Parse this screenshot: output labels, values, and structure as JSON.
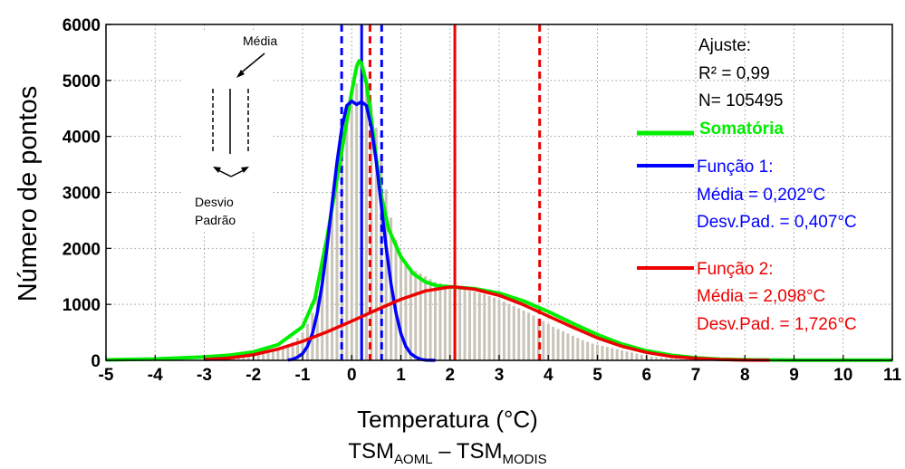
{
  "chart_data": {
    "type": "line",
    "ylabel": "Número de pontos",
    "xlabel": "Temperatura (°C)",
    "xlabel2": {
      "base1": "TSM",
      "sub1": "AOML",
      "dash": " – ",
      "base2": "TSM",
      "sub2": "MODIS"
    },
    "xlim": [
      -5,
      11
    ],
    "ylim": [
      0,
      6000
    ],
    "xticks": [
      -5,
      -4,
      -3,
      -2,
      -1,
      0,
      1,
      2,
      3,
      4,
      5,
      6,
      7,
      8,
      9,
      10,
      11
    ],
    "yticks": [
      0,
      1000,
      2000,
      3000,
      4000,
      5000,
      6000
    ],
    "grid": true,
    "histogram": {
      "color": "#c9c4b8",
      "bin_width": 0.1,
      "x": [
        -2.5,
        -2.4,
        -2.3,
        -2.2,
        -2.1,
        -2.0,
        -1.9,
        -1.8,
        -1.7,
        -1.6,
        -1.5,
        -1.4,
        -1.3,
        -1.2,
        -1.1,
        -1.0,
        -0.9,
        -0.8,
        -0.7,
        -0.6,
        -0.5,
        -0.4,
        -0.3,
        -0.2,
        -0.1,
        0.0,
        0.1,
        0.2,
        0.3,
        0.4,
        0.5,
        0.6,
        0.7,
        0.8,
        0.9,
        1.0,
        1.1,
        1.2,
        1.3,
        1.4,
        1.5,
        1.6,
        1.7,
        1.8,
        1.9,
        2.0,
        2.1,
        2.2,
        2.3,
        2.4,
        2.5,
        2.6,
        2.7,
        2.8,
        2.9,
        3.0,
        3.1,
        3.2,
        3.3,
        3.4,
        3.5,
        3.6,
        3.7,
        3.8,
        3.9,
        4.0,
        4.1,
        4.2,
        4.3,
        4.4,
        4.5,
        4.6,
        4.7,
        4.8,
        4.9,
        5.0,
        5.1,
        5.2,
        5.3,
        5.4,
        5.5,
        5.6,
        5.7,
        5.8,
        5.9,
        6.0,
        6.1,
        6.2,
        6.3,
        6.4,
        6.5,
        6.6,
        6.7,
        6.8,
        6.9,
        7.0
      ],
      "values": [
        40,
        50,
        60,
        70,
        80,
        90,
        110,
        130,
        150,
        170,
        200,
        240,
        280,
        330,
        400,
        500,
        650,
        850,
        1150,
        1550,
        2000,
        2600,
        3200,
        3800,
        4300,
        4700,
        4950,
        5050,
        4900,
        4600,
        4150,
        3650,
        3050,
        2550,
        2150,
        1850,
        1700,
        1650,
        1600,
        1550,
        1500,
        1450,
        1400,
        1380,
        1350,
        1320,
        1300,
        1280,
        1260,
        1240,
        1220,
        1200,
        1180,
        1150,
        1120,
        1090,
        1050,
        1010,
        970,
        930,
        890,
        850,
        800,
        750,
        700,
        650,
        600,
        560,
        520,
        480,
        440,
        400,
        360,
        330,
        300,
        280,
        260,
        240,
        220,
        200,
        180,
        160,
        140,
        120,
        100,
        85,
        70,
        60,
        50,
        40,
        32,
        25,
        20,
        15,
        10,
        8
      ]
    },
    "series": [
      {
        "name": "Somatória",
        "color": "#00ee00",
        "stroke": 4,
        "x": [
          -5,
          -4,
          -3,
          -2.5,
          -2,
          -1.5,
          -1,
          -0.75,
          -0.5,
          -0.25,
          0,
          0.1,
          0.15,
          0.2,
          0.3,
          0.4,
          0.5,
          0.6,
          0.75,
          1,
          1.25,
          1.5,
          1.75,
          2,
          2.5,
          3,
          3.5,
          4,
          4.5,
          5,
          5.5,
          6,
          6.5,
          7,
          7.5,
          8,
          9,
          11
        ],
        "y": [
          10,
          25,
          60,
          90,
          150,
          280,
          600,
          1100,
          2200,
          3500,
          4800,
          5250,
          5350,
          5300,
          4950,
          4300,
          3600,
          2950,
          2350,
          1850,
          1550,
          1400,
          1330,
          1315,
          1280,
          1200,
          1060,
          870,
          660,
          460,
          290,
          170,
          90,
          45,
          20,
          10,
          5,
          5
        ]
      },
      {
        "name": "Função 1",
        "color": "#0000ff",
        "stroke": 3.5,
        "x": [
          -1.3,
          -1.2,
          -1.1,
          -1.0,
          -0.9,
          -0.8,
          -0.7,
          -0.6,
          -0.5,
          -0.4,
          -0.3,
          -0.2,
          -0.1,
          0.0,
          0.1,
          0.2,
          0.3,
          0.4,
          0.5,
          0.6,
          0.7,
          0.8,
          0.9,
          1.0,
          1.1,
          1.2,
          1.3,
          1.4,
          1.5,
          1.6,
          1.7
        ],
        "y": [
          5,
          20,
          60,
          120,
          250,
          480,
          850,
          1370,
          2030,
          2790,
          3540,
          4160,
          4550,
          4630,
          4570,
          4620,
          4550,
          4160,
          3540,
          2790,
          2030,
          1370,
          850,
          480,
          250,
          120,
          60,
          20,
          5,
          2,
          0
        ]
      },
      {
        "name": "Função 2",
        "color": "#ee0000",
        "stroke": 3.5,
        "x": [
          -3,
          -2.5,
          -2,
          -1.5,
          -1,
          -0.5,
          0,
          0.5,
          1,
          1.5,
          2,
          2.1,
          2.5,
          3,
          3.5,
          4,
          4.5,
          5,
          5.5,
          6,
          6.5,
          7,
          7.5,
          8,
          8.5
        ],
        "y": [
          15,
          40,
          100,
          200,
          340,
          510,
          700,
          900,
          1090,
          1240,
          1310,
          1310,
          1270,
          1160,
          990,
          790,
          590,
          400,
          250,
          140,
          70,
          35,
          15,
          5,
          1
        ]
      }
    ],
    "vlines": [
      {
        "x": -0.205,
        "color": "#0000ff",
        "style": "dashed"
      },
      {
        "x": 0.202,
        "color": "#0000ff",
        "style": "solid"
      },
      {
        "x": 0.609,
        "color": "#0000ff",
        "style": "dashed"
      },
      {
        "x": 0.372,
        "color": "#ee0000",
        "style": "dashed"
      },
      {
        "x": 2.098,
        "color": "#ee0000",
        "style": "solid"
      },
      {
        "x": 3.824,
        "color": "#ee0000",
        "style": "dashed"
      }
    ],
    "annotations": {
      "fit": {
        "title": "Ajuste:",
        "r2": "R² = 0,99",
        "n": "N= 105495"
      },
      "legend": {
        "sum_label": "Somatória",
        "f1_title": "Função 1:",
        "f1_mean": "Média =  0,202°C",
        "f1_sd": "Desv.Pad. = 0,407°C",
        "f2_title": "Função 2:",
        "f2_mean": "Média =  2,098°C",
        "f2_sd": "Desv.Pad. = 1,726°C"
      },
      "inset": {
        "mean_label": "Média",
        "sd_label_1": "Desvio",
        "sd_label_2": "Padrão"
      }
    },
    "colors": {
      "sum": "#00ee00",
      "f1": "#0000ff",
      "f2": "#ee0000",
      "axis": "#000000",
      "grid": "#9a9a9a"
    }
  }
}
